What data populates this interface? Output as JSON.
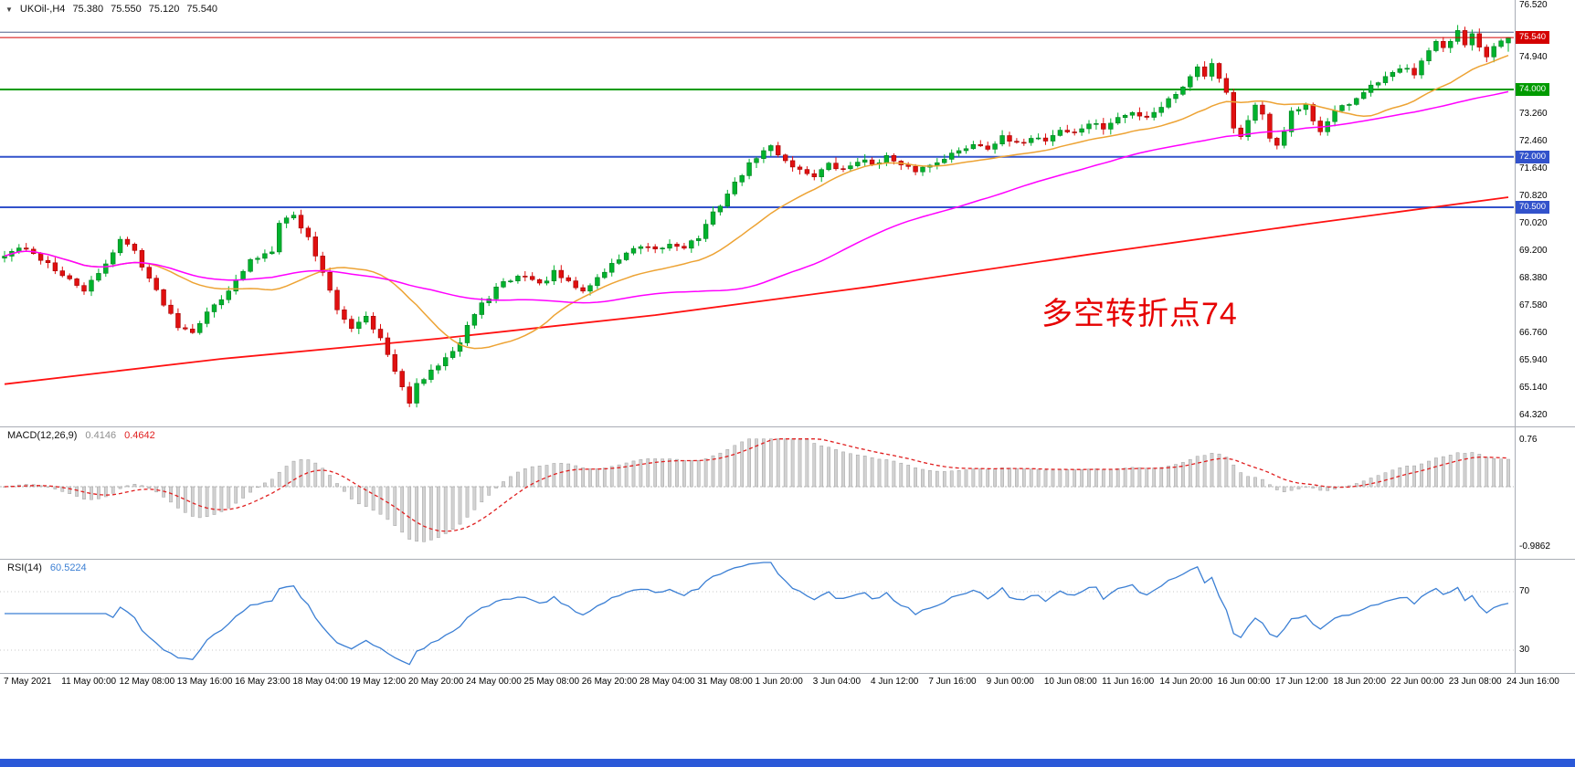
{
  "header": {
    "dropdown": "▼",
    "symbol": "UKOil-,H4",
    "open": "75.380",
    "high": "75.550",
    "low": "75.120",
    "close": "75.540"
  },
  "indicators": {
    "macd_label": "MACD(12,26,9)",
    "macd_value": "0.4146",
    "macd_signal": "0.4642",
    "rsi_label": "RSI(14)",
    "rsi_value": "60.5224"
  },
  "annotation": {
    "text": "多空转折点74",
    "color": "#e60000"
  },
  "colors": {
    "up": "#00b22d",
    "down": "#e01010",
    "up_stroke": "#007d1f",
    "down_stroke": "#a30000",
    "macd_hist": "#d2d2d2",
    "macd_hist_stroke": "#a0a0a0",
    "macd_signal": "#e02020",
    "rsi_line": "#3b7fd4",
    "price_line_red": "#d40000"
  },
  "chart_data": {
    "type": "candlestick",
    "symbol": "UKOil-",
    "timeframe": "H4",
    "bars": 209,
    "current_bar": {
      "open": 75.38,
      "high": 75.55,
      "low": 75.12,
      "close": 75.54
    },
    "price_axis": {
      "top_price": 76.52,
      "bottom_price": 64.32,
      "labels": [
        "76.520",
        "74.940",
        "73.260",
        "72.460",
        "71.640",
        "70.820",
        "70.020",
        "69.200",
        "68.380",
        "67.580",
        "66.760",
        "65.940",
        "65.140",
        "64.320"
      ]
    },
    "close_waypoints": [
      [
        0,
        69.05
      ],
      [
        2,
        69.3
      ],
      [
        4,
        69.1
      ],
      [
        6,
        68.85
      ],
      [
        8,
        68.45
      ],
      [
        11,
        68.05
      ],
      [
        13,
        68.5
      ],
      [
        16,
        69.55
      ],
      [
        18,
        69.2
      ],
      [
        21,
        68.0
      ],
      [
        24,
        67.0
      ],
      [
        26,
        66.85
      ],
      [
        29,
        67.6
      ],
      [
        32,
        68.3
      ],
      [
        34,
        68.9
      ],
      [
        37,
        69.25
      ],
      [
        38,
        70.1
      ],
      [
        40,
        70.25
      ],
      [
        42,
        69.6
      ],
      [
        44,
        68.6
      ],
      [
        46,
        67.4
      ],
      [
        48,
        66.95
      ],
      [
        50,
        67.3
      ],
      [
        52,
        66.6
      ],
      [
        54,
        65.6
      ],
      [
        55,
        65.1
      ],
      [
        56,
        64.75
      ],
      [
        57,
        65.2
      ],
      [
        59,
        65.6
      ],
      [
        61,
        66.1
      ],
      [
        63,
        66.5
      ],
      [
        64,
        67.0
      ],
      [
        66,
        67.6
      ],
      [
        68,
        68.1
      ],
      [
        70,
        68.35
      ],
      [
        72,
        68.5
      ],
      [
        74,
        68.2
      ],
      [
        76,
        68.55
      ],
      [
        78,
        68.25
      ],
      [
        80,
        68.0
      ],
      [
        82,
        68.4
      ],
      [
        84,
        68.8
      ],
      [
        86,
        69.15
      ],
      [
        88,
        69.3
      ],
      [
        90,
        69.2
      ],
      [
        92,
        69.4
      ],
      [
        94,
        69.35
      ],
      [
        96,
        69.6
      ],
      [
        98,
        70.3
      ],
      [
        100,
        70.9
      ],
      [
        102,
        71.5
      ],
      [
        104,
        72.0
      ],
      [
        106,
        72.3
      ],
      [
        108,
        71.9
      ],
      [
        110,
        71.6
      ],
      [
        112,
        71.45
      ],
      [
        114,
        71.75
      ],
      [
        116,
        71.6
      ],
      [
        118,
        71.9
      ],
      [
        120,
        71.8
      ],
      [
        122,
        72.0
      ],
      [
        124,
        71.7
      ],
      [
        126,
        71.6
      ],
      [
        128,
        71.75
      ],
      [
        130,
        72.0
      ],
      [
        132,
        72.15
      ],
      [
        134,
        72.4
      ],
      [
        136,
        72.3
      ],
      [
        138,
        72.55
      ],
      [
        140,
        72.35
      ],
      [
        142,
        72.6
      ],
      [
        144,
        72.5
      ],
      [
        146,
        72.8
      ],
      [
        148,
        72.7
      ],
      [
        150,
        73.0
      ],
      [
        152,
        72.85
      ],
      [
        154,
        73.15
      ],
      [
        156,
        73.3
      ],
      [
        158,
        73.2
      ],
      [
        160,
        73.5
      ],
      [
        162,
        73.9
      ],
      [
        164,
        74.35
      ],
      [
        165,
        74.7
      ],
      [
        166,
        74.45
      ],
      [
        167,
        74.8
      ],
      [
        168,
        74.4
      ],
      [
        169,
        73.9
      ],
      [
        170,
        72.9
      ],
      [
        171,
        72.6
      ],
      [
        172,
        73.1
      ],
      [
        173,
        73.5
      ],
      [
        174,
        73.2
      ],
      [
        175,
        72.5
      ],
      [
        176,
        72.35
      ],
      [
        177,
        72.8
      ],
      [
        178,
        73.3
      ],
      [
        180,
        73.5
      ],
      [
        181,
        73.0
      ],
      [
        182,
        72.75
      ],
      [
        183,
        73.1
      ],
      [
        184,
        73.35
      ],
      [
        186,
        73.6
      ],
      [
        188,
        73.9
      ],
      [
        190,
        74.2
      ],
      [
        192,
        74.45
      ],
      [
        194,
        74.7
      ],
      [
        195,
        74.5
      ],
      [
        196,
        74.9
      ],
      [
        197,
        75.15
      ],
      [
        198,
        75.4
      ],
      [
        199,
        75.2
      ],
      [
        200,
        75.35
      ],
      [
        201,
        75.7
      ],
      [
        202,
        75.3
      ],
      [
        203,
        75.6
      ],
      [
        204,
        75.2
      ],
      [
        205,
        74.95
      ],
      [
        206,
        75.3
      ],
      [
        207,
        75.45
      ],
      [
        208,
        75.54
      ]
    ],
    "ma_fast": {
      "period": 20,
      "color": "#eda334"
    },
    "ma_mid": {
      "period": 60,
      "color": "#ff00ff"
    },
    "ma_slow": {
      "color": "#ff1111",
      "path": [
        [
          0,
          65.25
        ],
        [
          30,
          66.0
        ],
        [
          60,
          66.6
        ],
        [
          90,
          67.3
        ],
        [
          120,
          68.15
        ],
        [
          150,
          69.1
        ],
        [
          180,
          70.0
        ],
        [
          208,
          70.8
        ]
      ]
    },
    "hlines": [
      {
        "price": 75.7,
        "color": "#51618c",
        "width": 1,
        "badge": null
      },
      {
        "price": 74.0,
        "color": "#009b00",
        "width": 2,
        "badge": "74.000"
      },
      {
        "price": 72.0,
        "color": "#3252cb",
        "width": 2,
        "badge": "72.000"
      },
      {
        "price": 70.5,
        "color": "#3252cb",
        "width": 2,
        "badge": "70.500"
      }
    ],
    "current_price_line": {
      "price": 75.54,
      "label": "75.540",
      "color": "#d40000"
    },
    "x_labels": [
      "7 May 2021",
      "11 May 00:00",
      "12 May 08:00",
      "13 May 16:00",
      "16 May 23:00",
      "18 May 04:00",
      "19 May 12:00",
      "20 May 20:00",
      "24 May 00:00",
      "25 May 08:00",
      "26 May 20:00",
      "28 May 04:00",
      "31 May 08:00",
      "1 Jun 20:00",
      "3 Jun 04:00",
      "4 Jun 12:00",
      "7 Jun 16:00",
      "9 Jun 00:00",
      "10 Jun 08:00",
      "11 Jun 16:00",
      "14 Jun 20:00",
      "16 Jun 00:00",
      "17 Jun 12:00",
      "18 Jun 20:00",
      "22 Jun 00:00",
      "23 Jun 08:00",
      "24 Jun 16:00"
    ],
    "macd": {
      "fast": 12,
      "slow": 26,
      "smoothing": 9,
      "value": 0.4146,
      "signal": 0.4642,
      "axis_labels": [
        "0.76",
        "-0.9862"
      ]
    },
    "rsi": {
      "period": 14,
      "value": 60.5224,
      "levels": [
        70,
        30
      ]
    },
    "noise_seed": 42
  }
}
